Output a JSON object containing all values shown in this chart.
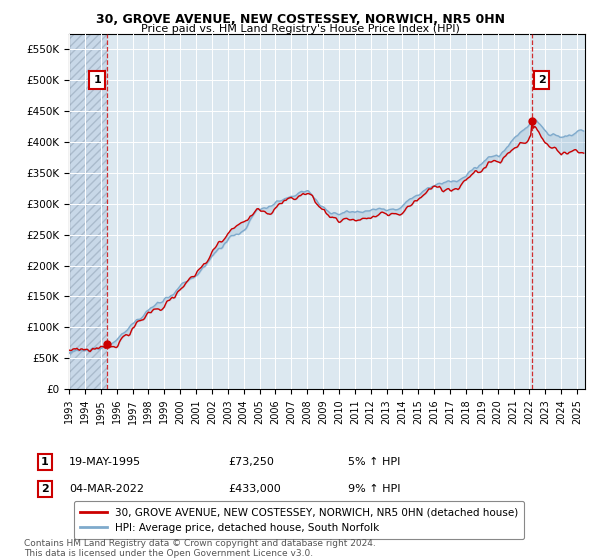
{
  "title1": "30, GROVE AVENUE, NEW COSTESSEY, NORWICH, NR5 0HN",
  "title2": "Price paid vs. HM Land Registry's House Price Index (HPI)",
  "legend_line1": "30, GROVE AVENUE, NEW COSTESSEY, NORWICH, NR5 0HN (detached house)",
  "legend_line2": "HPI: Average price, detached house, South Norfolk",
  "annotation1_label": "1",
  "annotation1_date": "19-MAY-1995",
  "annotation1_price": "£73,250",
  "annotation1_hpi": "5% ↑ HPI",
  "annotation1_year": 1995.38,
  "annotation1_value": 73250,
  "annotation2_label": "2",
  "annotation2_date": "04-MAR-2022",
  "annotation2_price": "£433,000",
  "annotation2_hpi": "9% ↑ HPI",
  "annotation2_year": 2022.17,
  "annotation2_value": 433000,
  "hpi_color": "#7faacc",
  "price_color": "#cc0000",
  "background_plot": "#dce8f0",
  "background_hatch_color": "#c8d8e8",
  "ylabel_color": "#333333",
  "ylim": [
    0,
    575000
  ],
  "yticks": [
    0,
    50000,
    100000,
    150000,
    200000,
    250000,
    300000,
    350000,
    400000,
    450000,
    500000,
    550000
  ],
  "xmin": 1993,
  "xmax": 2025.5,
  "hatch_xmin": 1993,
  "hatch_xmax": 1995.38,
  "footer": "Contains HM Land Registry data © Crown copyright and database right 2024.\nThis data is licensed under the Open Government Licence v3.0."
}
